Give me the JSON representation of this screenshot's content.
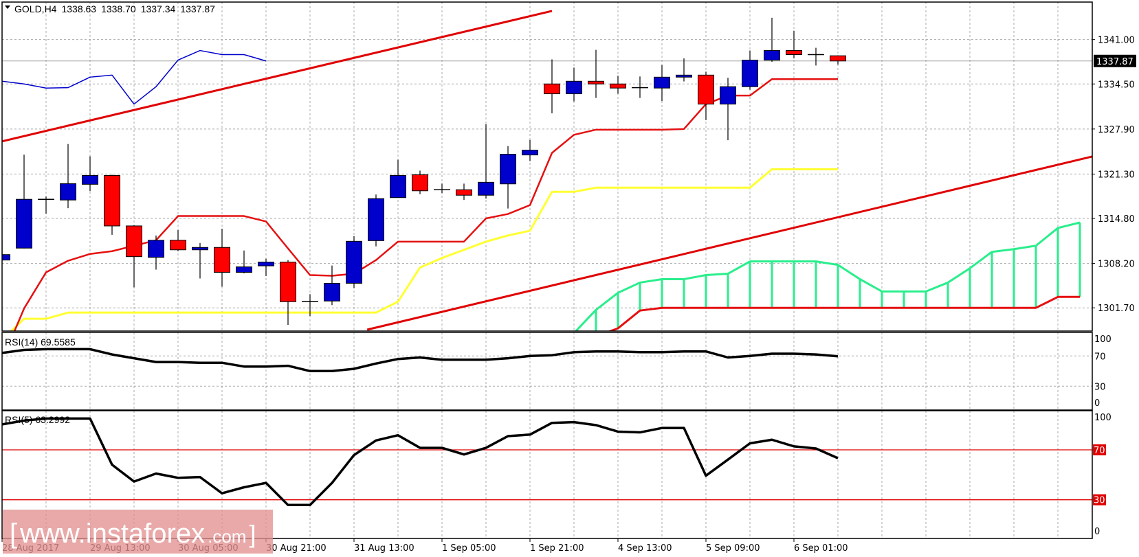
{
  "header": {
    "symbol_timeframe": "GOLD,H4",
    "open": "1338.63",
    "high": "1338.70",
    "low": "1337.34",
    "close": "1337.87"
  },
  "watermark": {
    "text": "www.instaforex",
    "suffix": ".com",
    "bracket_open": "[",
    "bracket_close": "]"
  },
  "colors": {
    "bull": "#0000cc",
    "bear": "#ff0000",
    "tenkan": "#e51010",
    "kijun": "#ffff33",
    "chikou": "#0000cc",
    "span_a": "#2aee8c",
    "span_b": "#e51010",
    "trendline": "#e00000",
    "rsi": "#000000",
    "rsi_levels": "#e00000",
    "grid": "#a9a9a9"
  },
  "chart_data": [
    {
      "type": "candlestick",
      "symbol": "GOLD,H4",
      "ylim": [
        1298.3,
        1346.5
      ],
      "xlim": [
        0,
        49.6
      ],
      "grid": true,
      "y_ticks": [
        "1341.00",
        "1334.50",
        "1327.90",
        "1321.30",
        "1314.80",
        "1308.20",
        "1301.70"
      ],
      "current_price": "1337.87",
      "x_tick_labels": [
        {
          "index": 0,
          "label": "28 Aug 2017"
        },
        {
          "index": 4,
          "label": "29 Aug 13:00"
        },
        {
          "index": 8,
          "label": "30 Aug 05:00"
        },
        {
          "index": 12,
          "label": "30 Aug 21:00"
        },
        {
          "index": 16,
          "label": "31 Aug 13:00"
        },
        {
          "index": 20,
          "label": "1 Sep 05:00"
        },
        {
          "index": 24,
          "label": "1 Sep 21:00"
        },
        {
          "index": 28,
          "label": "4 Sep 13:00"
        },
        {
          "index": 32,
          "label": "5 Sep 09:00"
        },
        {
          "index": 36,
          "label": "6 Sep 01:00"
        }
      ],
      "ohlc": [
        [
          1308.7,
          1311.7,
          1308.7,
          1309.5
        ],
        [
          1310.45,
          1324.15,
          1310.4,
          1317.6
        ],
        [
          1317.6,
          1318.0,
          1315.5,
          1317.6
        ],
        [
          1317.5,
          1325.7,
          1316.3,
          1319.9
        ],
        [
          1319.8,
          1323.9,
          1318.8,
          1321.1
        ],
        [
          1321.1,
          1321.2,
          1312.4,
          1313.7
        ],
        [
          1313.7,
          1313.8,
          1304.7,
          1309.2
        ],
        [
          1309.1,
          1312.3,
          1307.3,
          1311.6
        ],
        [
          1311.6,
          1313.1,
          1310.0,
          1310.2
        ],
        [
          1310.2,
          1311.2,
          1306.0,
          1310.55
        ],
        [
          1310.55,
          1313.3,
          1304.8,
          1306.9
        ],
        [
          1306.9,
          1310.1,
          1306.75,
          1307.7
        ],
        [
          1307.85,
          1308.9,
          1306.35,
          1308.4
        ],
        [
          1308.4,
          1308.7,
          1299.2,
          1302.6
        ],
        [
          1302.65,
          1303.7,
          1300.5,
          1302.65
        ],
        [
          1302.7,
          1307.9,
          1302.1,
          1305.3
        ],
        [
          1305.3,
          1312.2,
          1304.6,
          1311.45
        ],
        [
          1311.55,
          1318.3,
          1310.7,
          1317.7
        ],
        [
          1317.85,
          1323.4,
          1317.8,
          1321.1
        ],
        [
          1321.2,
          1321.8,
          1318.35,
          1318.85
        ],
        [
          1319.0,
          1319.9,
          1318.5,
          1319.0
        ],
        [
          1319.0,
          1319.9,
          1317.5,
          1318.2
        ],
        [
          1318.2,
          1328.6,
          1317.7,
          1320.1
        ],
        [
          1319.86,
          1325.4,
          1316.25,
          1324.2
        ],
        [
          1324.1,
          1326.3,
          1323.2,
          1324.8
        ],
        [
          1334.5,
          1338.1,
          1330.2,
          1333.06
        ],
        [
          1333.06,
          1336.9,
          1331.95,
          1334.9
        ],
        [
          1334.9,
          1339.5,
          1332.45,
          1334.5
        ],
        [
          1334.5,
          1335.7,
          1333.06,
          1333.9
        ],
        [
          1333.96,
          1335.6,
          1332.45,
          1333.96
        ],
        [
          1333.9,
          1337.25,
          1332.0,
          1335.5
        ],
        [
          1335.5,
          1338.25,
          1334.87,
          1335.8
        ],
        [
          1335.8,
          1336.3,
          1329.2,
          1331.55
        ],
        [
          1331.55,
          1335.4,
          1326.26,
          1334.1
        ],
        [
          1334.1,
          1339.4,
          1333.66,
          1338.0
        ],
        [
          1338.0,
          1344.2,
          1337.75,
          1339.4
        ],
        [
          1339.4,
          1342.3,
          1338.25,
          1338.8
        ],
        [
          1338.8,
          1339.8,
          1337.2,
          1338.8
        ],
        [
          1338.63,
          1338.7,
          1337.34,
          1337.87
        ]
      ],
      "tenkan": [
        1294,
        1301.6,
        1306.9,
        1308.6,
        1309.6,
        1310.0,
        1310.8,
        1311.6,
        1315.15,
        1315.15,
        1315.15,
        1315.15,
        1314.35,
        1310.4,
        1306.5,
        1306.4,
        1306.7,
        1308.7,
        1311.4,
        1311.4,
        1311.4,
        1311.4,
        1314.8,
        1315.45,
        1316.75,
        1324.4,
        1327.05,
        1327.8,
        1327.8,
        1327.8,
        1327.8,
        1327.9,
        1331.55,
        1332.8,
        1332.8,
        1335.2,
        1335.2,
        1335.2,
        1335.2
      ],
      "kijun": [
        1297,
        1300.1,
        1300.1,
        1301,
        1301,
        1301,
        1301,
        1301,
        1301,
        1301,
        1301,
        1301,
        1301,
        1301,
        1301,
        1301,
        1301,
        1301,
        1302.6,
        1307.6,
        1309.0,
        1310.2,
        1311.4,
        1312.3,
        1313.0,
        1318.7,
        1318.7,
        1319.3,
        1319.3,
        1319.3,
        1319.3,
        1319.3,
        1319.3,
        1319.3,
        1319.3,
        1322.0,
        1322.0,
        1322.0,
        1322.0
      ],
      "chikou": {
        "start_index": 0,
        "values": [
          1334.9,
          1334.5,
          1333.9,
          1333.96,
          1335.5,
          1335.8,
          1331.55,
          1334.1,
          1338.0,
          1339.4,
          1338.8,
          1338.8,
          1337.87
        ]
      },
      "span_a": {
        "start_index": 26,
        "values": [
          1298,
          1301.4,
          1303.9,
          1305.4,
          1305.9,
          1305.9,
          1306.5,
          1306.7,
          1308.5,
          1308.5,
          1308.5,
          1308.5,
          1308.0,
          1305.9,
          1304.1,
          1304.1,
          1304.1,
          1305.4,
          1307.5,
          1309.9,
          1310.3,
          1310.8,
          1313.4,
          1314.2
        ]
      },
      "span_b": {
        "start_index": 26,
        "values": [
          1296,
          1297.5,
          1298.7,
          1301.3,
          1301.7,
          1301.7,
          1301.7,
          1301.7,
          1301.7,
          1301.7,
          1301.7,
          1301.7,
          1301.7,
          1301.7,
          1301.7,
          1301.7,
          1301.7,
          1301.7,
          1301.7,
          1301.7,
          1301.7,
          1301.7,
          1303.3,
          1303.3
        ]
      },
      "trendlines": [
        {
          "from": [
            0,
            1326.1
          ],
          "to": [
            25,
            1345.2
          ]
        },
        {
          "from": [
            16.6,
            1298.5
          ],
          "to": [
            49.6,
            1323.9
          ]
        }
      ]
    },
    {
      "type": "line",
      "label": "RSI(14) 69.5585",
      "ylim": [
        0,
        100
      ],
      "y_ticks": [
        "100",
        "70",
        "30",
        "0"
      ],
      "levels": [
        70,
        30
      ],
      "values": [
        74,
        78,
        79,
        79,
        79,
        72,
        67,
        62,
        62,
        61,
        61,
        56,
        56,
        57,
        50,
        50,
        53,
        60,
        66,
        68,
        65,
        65,
        65,
        67,
        70,
        71,
        75,
        76,
        76,
        75,
        75,
        76,
        76,
        68,
        70,
        73,
        73,
        72,
        69.56
      ]
    },
    {
      "type": "line",
      "label": "RSI(5) 63.2992",
      "ylim": [
        0,
        100
      ],
      "y_ticks": [
        "100",
        "70",
        "30",
        "0"
      ],
      "levels": [
        70,
        30
      ],
      "values": [
        90.4,
        93.4,
        95.1,
        95.1,
        95.1,
        58.1,
        44.6,
        51,
        47.6,
        48.2,
        35.2,
        40,
        43.5,
        25.8,
        25.8,
        43.5,
        65.8,
        77.5,
        81.7,
        71.6,
        71.6,
        66.3,
        71.6,
        81,
        82.2,
        91.6,
        92.2,
        89.8,
        84.6,
        84,
        87.5,
        87.5,
        49.3,
        62.2,
        75.2,
        78.1,
        72.8,
        71.1,
        63.3
      ]
    }
  ]
}
